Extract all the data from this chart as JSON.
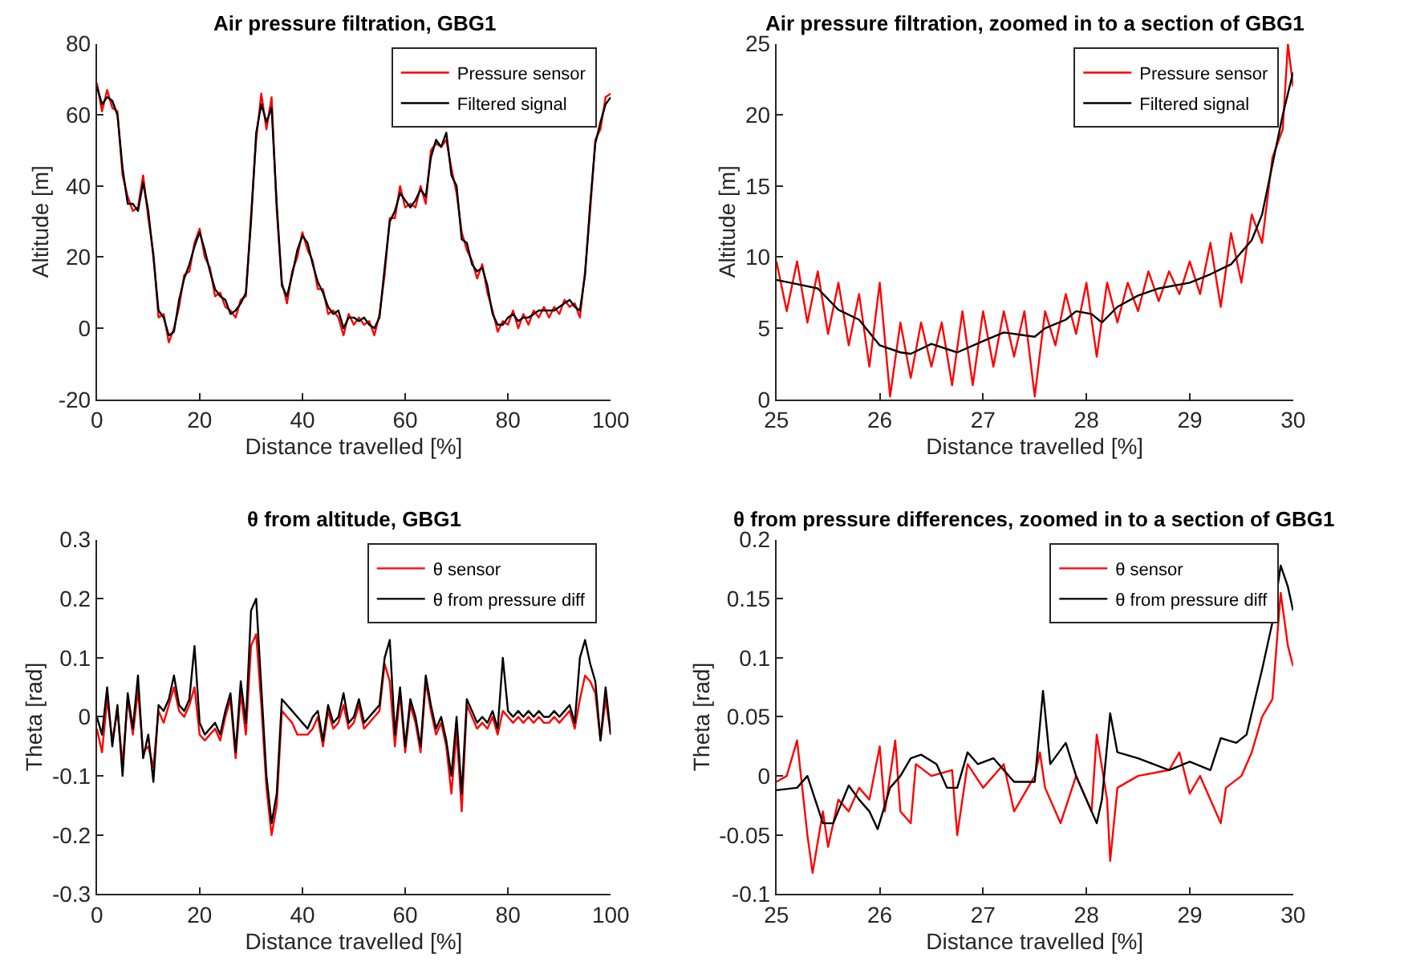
{
  "chart_data": [
    {
      "type": "line",
      "title": "Air pressure filtration, GBG1",
      "xlabel": "Distance travelled [%]",
      "ylabel": "Altitude [m]",
      "xlim": [
        0,
        100
      ],
      "xticks": [
        0,
        20,
        40,
        60,
        80,
        100
      ],
      "ylim": [
        -20,
        80
      ],
      "yticks": [
        -20,
        0,
        20,
        40,
        60,
        80
      ],
      "legend": "top right",
      "marker": "none",
      "line_style": "solid",
      "x": [
        0,
        1,
        2,
        3,
        4,
        5,
        6,
        7,
        8,
        9,
        10,
        11,
        12,
        13,
        14,
        15,
        16,
        17,
        18,
        19,
        20,
        21,
        22,
        23,
        24,
        25,
        26,
        27,
        28,
        29,
        30,
        31,
        32,
        33,
        34,
        35,
        36,
        37,
        38,
        39,
        40,
        41,
        42,
        43,
        44,
        45,
        46,
        47,
        48,
        49,
        50,
        51,
        52,
        53,
        54,
        55,
        56,
        57,
        58,
        59,
        60,
        61,
        62,
        63,
        64,
        65,
        66,
        67,
        68,
        69,
        70,
        71,
        72,
        73,
        74,
        75,
        76,
        77,
        78,
        79,
        80,
        81,
        82,
        83,
        84,
        85,
        86,
        87,
        88,
        89,
        90,
        91,
        92,
        93,
        94,
        95,
        96,
        97,
        98,
        99,
        100
      ],
      "series": [
        {
          "name": "Pressure sensor",
          "color": "#ff0000",
          "values": [
            69,
            61,
            67,
            62,
            61,
            43,
            37,
            33,
            34,
            43,
            31,
            21,
            3,
            4,
            -4,
            0,
            6,
            15,
            16,
            24,
            28,
            20,
            17,
            9,
            10,
            6,
            5,
            3,
            8,
            9,
            32,
            53,
            66,
            56,
            65,
            33,
            13,
            7,
            16,
            20,
            27,
            22,
            19,
            11,
            11,
            4,
            5,
            3,
            -2,
            4,
            1,
            3,
            1,
            2,
            -2,
            4,
            15,
            31,
            31,
            40,
            34,
            35,
            34,
            40,
            35,
            50,
            52,
            51,
            53,
            45,
            38,
            27,
            22,
            19,
            14,
            18,
            10,
            5,
            -1,
            2,
            1,
            5,
            0,
            4,
            1,
            5,
            3,
            6,
            3,
            6,
            4,
            8,
            6,
            7,
            3,
            16,
            33,
            53,
            56,
            65,
            66
          ]
        },
        {
          "name": "Filtered signal",
          "color": "#000000",
          "values": [
            68,
            63,
            65,
            64,
            60,
            45,
            35,
            35,
            33,
            41,
            33,
            20,
            5,
            3,
            -2,
            -1,
            8,
            14,
            18,
            23,
            27,
            22,
            16,
            11,
            9,
            8,
            4,
            5,
            7,
            10,
            30,
            55,
            63,
            58,
            62,
            35,
            12,
            9,
            15,
            22,
            26,
            24,
            18,
            13,
            10,
            6,
            4,
            5,
            0,
            3,
            3,
            2,
            3,
            1,
            0,
            3,
            17,
            30,
            33,
            38,
            36,
            34,
            36,
            39,
            37,
            48,
            53,
            51,
            55,
            43,
            40,
            25,
            24,
            18,
            16,
            17,
            12,
            4,
            1,
            1,
            3,
            4,
            2,
            3,
            3,
            4,
            5,
            5,
            5,
            5,
            6,
            7,
            8,
            6,
            5,
            15,
            35,
            52,
            58,
            63,
            65
          ]
        }
      ]
    },
    {
      "type": "line",
      "title": "Air pressure filtration, zoomed in to a section of GBG1",
      "xlabel": "Distance travelled [%]",
      "ylabel": "Altitude [m]",
      "xlim": [
        25,
        30
      ],
      "xticks": [
        25,
        26,
        27,
        28,
        29,
        30
      ],
      "ylim": [
        0,
        25
      ],
      "yticks": [
        0,
        5,
        10,
        15,
        20,
        25
      ],
      "legend": "top right",
      "marker": "none",
      "line_style": "solid",
      "series": [
        {
          "name": "Pressure sensor",
          "color": "#ff0000",
          "x": [
            25.0,
            25.1,
            25.2,
            25.3,
            25.4,
            25.5,
            25.6,
            25.7,
            25.8,
            25.9,
            26.0,
            26.1,
            26.2,
            26.3,
            26.4,
            26.5,
            26.6,
            26.7,
            26.8,
            26.9,
            27.0,
            27.1,
            27.2,
            27.3,
            27.4,
            27.5,
            27.6,
            27.7,
            27.8,
            27.9,
            28.0,
            28.1,
            28.2,
            28.3,
            28.4,
            28.5,
            28.6,
            28.7,
            28.8,
            28.9,
            29.0,
            29.1,
            29.2,
            29.3,
            29.4,
            29.5,
            29.6,
            29.7,
            29.8,
            29.9,
            29.95,
            30.0
          ],
          "values": [
            9.7,
            6.2,
            9.7,
            5.4,
            9.0,
            4.6,
            8.2,
            3.8,
            7.4,
            2.3,
            8.2,
            0.2,
            5.4,
            1.5,
            5.4,
            2.3,
            5.4,
            1.0,
            6.2,
            1.0,
            6.2,
            2.3,
            6.2,
            3.0,
            6.2,
            0.2,
            6.2,
            3.8,
            7.4,
            4.6,
            8.2,
            3.0,
            8.2,
            5.4,
            8.2,
            6.2,
            9.0,
            6.9,
            9.0,
            7.4,
            9.7,
            7.4,
            11.0,
            6.5,
            11.7,
            8.2,
            13.0,
            11.0,
            17.0,
            19.0,
            25.0,
            22.0
          ]
        },
        {
          "name": "Filtered signal",
          "color": "#000000",
          "x": [
            25.0,
            25.2,
            25.4,
            25.6,
            25.8,
            26.0,
            26.2,
            26.3,
            26.5,
            26.75,
            27.0,
            27.2,
            27.5,
            27.6,
            27.8,
            27.9,
            28.05,
            28.15,
            28.3,
            28.5,
            28.7,
            29.0,
            29.2,
            29.4,
            29.6,
            29.7,
            29.8,
            29.9,
            30.0
          ],
          "values": [
            8.4,
            8.1,
            7.8,
            6.3,
            5.6,
            3.8,
            3.3,
            3.2,
            3.9,
            3.3,
            4.1,
            4.7,
            4.4,
            5.0,
            5.6,
            6.2,
            6.0,
            5.4,
            6.5,
            7.3,
            7.8,
            8.2,
            8.8,
            9.5,
            11.2,
            13.0,
            16.5,
            20.0,
            23.0
          ]
        }
      ]
    },
    {
      "type": "line",
      "title": "θ from altitude, GBG1",
      "xlabel": "Distance travelled [%]",
      "ylabel": "Theta [rad]",
      "xlim": [
        0,
        100
      ],
      "xticks": [
        0,
        20,
        40,
        60,
        80,
        100
      ],
      "ylim": [
        -0.3,
        0.3
      ],
      "yticks": [
        -0.3,
        -0.2,
        -0.1,
        0,
        0.1,
        0.2,
        0.3
      ],
      "legend": "top right",
      "marker": "none",
      "line_style": "solid",
      "x": [
        0,
        1,
        2,
        3,
        4,
        5,
        6,
        7,
        8,
        9,
        10,
        11,
        12,
        13,
        14,
        15,
        16,
        17,
        18,
        19,
        20,
        21,
        22,
        23,
        24,
        25,
        26,
        27,
        28,
        29,
        30,
        31,
        32,
        33,
        34,
        35,
        36,
        37,
        38,
        39,
        40,
        41,
        42,
        43,
        44,
        45,
        46,
        47,
        48,
        49,
        50,
        51,
        52,
        53,
        54,
        55,
        56,
        57,
        58,
        59,
        60,
        61,
        62,
        63,
        64,
        65,
        66,
        67,
        68,
        69,
        70,
        71,
        72,
        73,
        74,
        75,
        76,
        77,
        78,
        79,
        80,
        81,
        82,
        83,
        84,
        85,
        86,
        87,
        88,
        89,
        90,
        91,
        92,
        93,
        94,
        95,
        96,
        97,
        98,
        99,
        100
      ],
      "series": [
        {
          "name": "θ sensor",
          "color": "#ff0000",
          "values": [
            -0.02,
            -0.06,
            0.03,
            -0.04,
            0.01,
            -0.08,
            0.03,
            -0.03,
            0.045,
            -0.06,
            -0.05,
            -0.085,
            0.01,
            -0.01,
            0.02,
            0.05,
            0.01,
            0,
            0.02,
            0.05,
            -0.03,
            -0.04,
            -0.03,
            -0.02,
            -0.04,
            0,
            0.03,
            -0.07,
            0.04,
            -0.03,
            0.12,
            0.14,
            0.02,
            -0.12,
            -0.2,
            -0.15,
            0.01,
            0,
            -0.01,
            -0.03,
            -0.03,
            -0.03,
            -0.02,
            0,
            -0.05,
            0.01,
            -0.02,
            -0.01,
            0.02,
            -0.02,
            -0.01,
            0.02,
            -0.02,
            -0.01,
            0,
            0.01,
            0.09,
            0.06,
            -0.05,
            0.04,
            -0.06,
            0.02,
            -0.01,
            -0.06,
            0.06,
            0.01,
            -0.03,
            -0.01,
            -0.05,
            -0.13,
            -0.025,
            -0.16,
            0.02,
            0,
            -0.02,
            -0.01,
            -0.02,
            0,
            -0.03,
            0.01,
            0,
            -0.01,
            0,
            -0.01,
            0,
            -0.01,
            0,
            -0.01,
            -0.01,
            0,
            -0.01,
            0,
            0.01,
            -0.02,
            0.03,
            0.07,
            0.06,
            0.04,
            -0.04,
            0.03,
            -0.03
          ]
        },
        {
          "name": "θ from pressure diff",
          "color": "#000000",
          "values": [
            0,
            -0.03,
            0.05,
            -0.05,
            0.02,
            -0.1,
            0.04,
            -0.02,
            0.07,
            -0.07,
            -0.03,
            -0.11,
            0.02,
            0.01,
            0.03,
            0.07,
            0.02,
            0.01,
            0.03,
            0.12,
            -0.01,
            -0.03,
            -0.02,
            -0.01,
            -0.03,
            0.01,
            0.04,
            -0.06,
            0.06,
            -0.01,
            0.18,
            0.2,
            0.05,
            -0.1,
            -0.18,
            -0.13,
            0.03,
            0.02,
            0.01,
            0,
            -0.01,
            -0.02,
            0,
            0.01,
            -0.04,
            0.02,
            -0.01,
            0,
            0.04,
            -0.01,
            0,
            0.03,
            -0.01,
            0,
            0.01,
            0.02,
            0.1,
            0.13,
            -0.03,
            0.05,
            -0.05,
            0.03,
            0,
            -0.05,
            0.07,
            0.02,
            -0.02,
            0,
            -0.04,
            -0.1,
            0,
            -0.13,
            0.03,
            0.01,
            -0.01,
            0,
            -0.01,
            0.01,
            -0.02,
            0.1,
            0.01,
            0,
            0.01,
            0,
            0.01,
            0,
            0.01,
            0,
            0,
            0.01,
            0,
            0.01,
            0.02,
            -0.01,
            0.1,
            0.13,
            0.09,
            0.06,
            -0.04,
            0.05,
            -0.03
          ]
        }
      ]
    },
    {
      "type": "line",
      "title": "θ from pressure differences, zoomed in to a section of GBG1",
      "xlabel": "Distance travelled [%]",
      "ylabel": "Theta [rad]",
      "xlim": [
        25,
        30
      ],
      "xticks": [
        25,
        26,
        27,
        28,
        29,
        30
      ],
      "ylim": [
        -0.1,
        0.2
      ],
      "yticks": [
        -0.1,
        -0.05,
        0,
        0.05,
        0.1,
        0.15,
        0.2
      ],
      "legend": "top right",
      "marker": "none",
      "line_style": "solid",
      "series": [
        {
          "name": "θ sensor",
          "color": "#ff0000",
          "x": [
            25,
            25.1,
            25.2,
            25.25,
            25.3,
            25.35,
            25.45,
            25.5,
            25.6,
            25.7,
            25.8,
            25.9,
            26.0,
            26.05,
            26.15,
            26.2,
            26.3,
            26.35,
            26.5,
            26.7,
            26.75,
            26.85,
            27.0,
            27.2,
            27.3,
            27.5,
            27.55,
            27.6,
            27.75,
            27.9,
            28.05,
            28.1,
            28.2,
            28.23,
            28.3,
            28.5,
            28.8,
            28.9,
            29.0,
            29.1,
            29.3,
            29.35,
            29.5,
            29.6,
            29.7,
            29.8,
            29.88,
            29.95,
            30
          ],
          "values": [
            -0.005,
            0.0,
            0.03,
            -0.01,
            -0.05,
            -0.082,
            -0.03,
            -0.06,
            -0.02,
            -0.03,
            -0.01,
            -0.02,
            0.025,
            -0.03,
            0.03,
            -0.03,
            -0.04,
            0.01,
            0.0,
            0.005,
            -0.05,
            0.01,
            -0.01,
            0.01,
            -0.03,
            0.0,
            0.02,
            -0.01,
            -0.04,
            0.0,
            -0.03,
            0.035,
            -0.02,
            -0.072,
            -0.01,
            0.0,
            0.005,
            0.02,
            -0.015,
            0.0,
            -0.04,
            -0.01,
            0.0,
            0.02,
            0.05,
            0.065,
            0.155,
            0.11,
            0.093
          ]
        },
        {
          "name": "θ from pressure diff",
          "color": "#000000",
          "x": [
            25,
            25.2,
            25.3,
            25.45,
            25.55,
            25.7,
            25.8,
            25.9,
            25.98,
            26.1,
            26.2,
            26.3,
            26.4,
            26.55,
            26.65,
            26.75,
            26.85,
            26.95,
            27.1,
            27.3,
            27.5,
            27.58,
            27.65,
            27.8,
            27.9,
            28.0,
            28.1,
            28.15,
            28.23,
            28.3,
            28.5,
            28.8,
            29.0,
            29.2,
            29.3,
            29.45,
            29.55,
            29.7,
            29.8,
            29.88,
            29.95,
            30
          ],
          "values": [
            -0.012,
            -0.01,
            0.0,
            -0.04,
            -0.04,
            -0.008,
            -0.02,
            -0.03,
            -0.045,
            -0.01,
            0.0,
            0.015,
            0.018,
            0.01,
            -0.01,
            -0.01,
            0.02,
            0.01,
            0.015,
            -0.005,
            -0.005,
            0.072,
            0.01,
            0.028,
            0.0,
            -0.02,
            -0.04,
            -0.02,
            0.053,
            0.02,
            0.015,
            0.005,
            0.012,
            0.005,
            0.032,
            0.028,
            0.035,
            0.09,
            0.13,
            0.178,
            0.16,
            0.14
          ]
        }
      ]
    }
  ]
}
